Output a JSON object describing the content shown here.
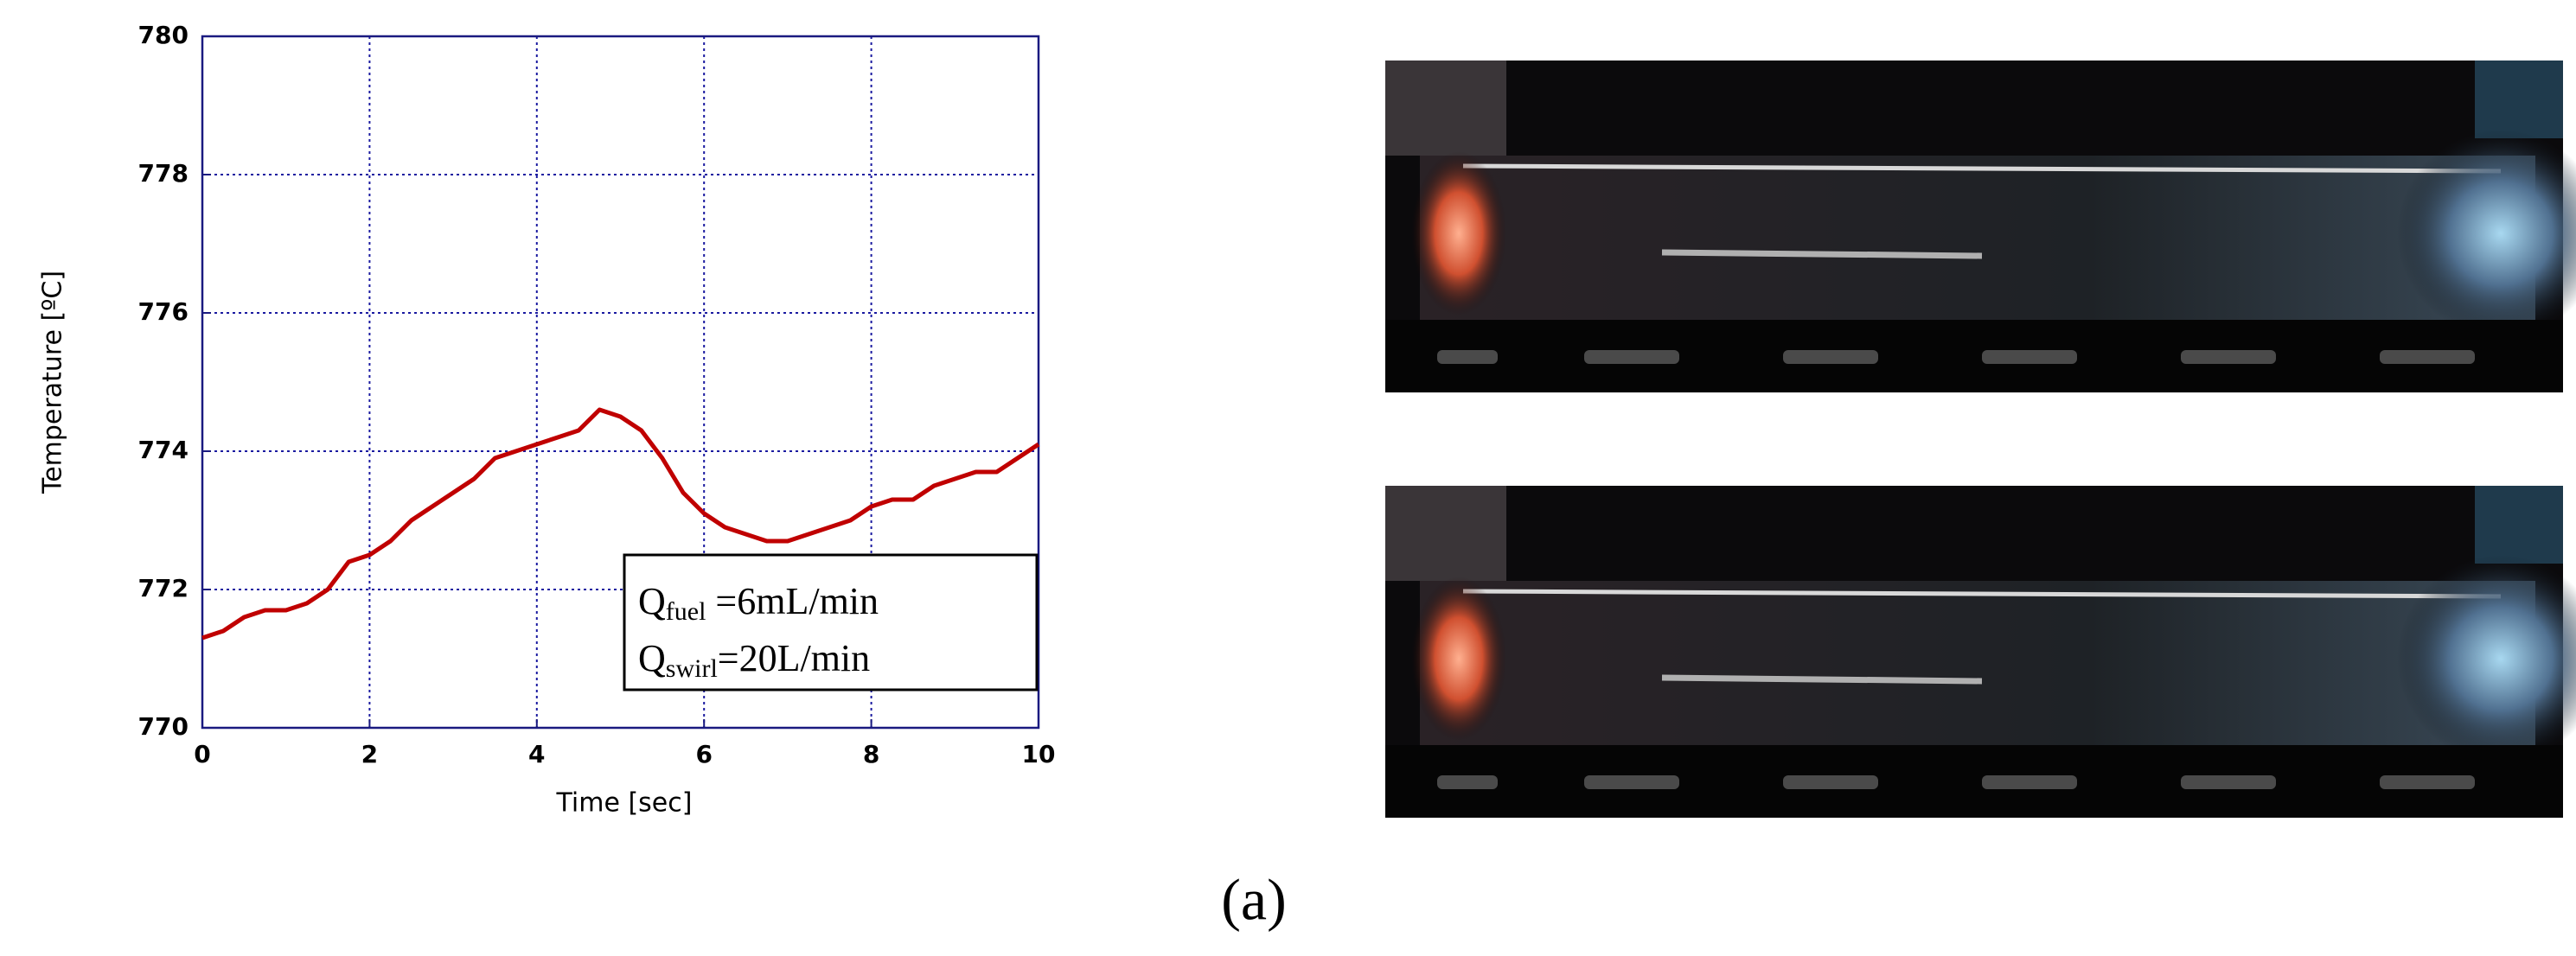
{
  "chart_data": {
    "type": "line",
    "xlabel": "Time  [sec]",
    "ylabel": "Temperature  [ºC]",
    "x": [
      0,
      0.25,
      0.5,
      0.75,
      1.0,
      1.25,
      1.5,
      1.75,
      2.0,
      2.25,
      2.5,
      2.75,
      3.0,
      3.25,
      3.5,
      3.75,
      4.0,
      4.25,
      4.5,
      4.75,
      5.0,
      5.25,
      5.5,
      5.75,
      6.0,
      6.25,
      6.5,
      6.75,
      7.0,
      7.25,
      7.5,
      7.75,
      8.0,
      8.25,
      8.5,
      8.75,
      9.0,
      9.25,
      9.5,
      9.75,
      10
    ],
    "series": [
      {
        "color": "#c00000",
        "values": [
          771.3,
          771.4,
          771.6,
          771.7,
          771.7,
          771.8,
          772.0,
          772.4,
          772.5,
          772.7,
          773.0,
          773.2,
          773.4,
          773.6,
          773.9,
          774.0,
          774.1,
          774.2,
          774.3,
          774.6,
          774.5,
          774.3,
          773.9,
          773.4,
          773.1,
          772.9,
          772.8,
          772.7,
          772.7,
          772.8,
          772.9,
          773.0,
          773.2,
          773.3,
          773.3,
          773.5,
          773.6,
          773.7,
          773.7,
          773.9,
          774.1
        ]
      }
    ],
    "xlim": [
      0,
      10
    ],
    "xticks": [
      0,
      2,
      4,
      6,
      8,
      10
    ],
    "ylim": [
      770,
      780
    ],
    "yticks": [
      770,
      772,
      774,
      776,
      778,
      780
    ],
    "grid": true,
    "annotation": [
      {
        "main": "Q",
        "sub": "fuel",
        "rest": " =6mL/min"
      },
      {
        "main": "Q",
        "sub": "swirl",
        "rest": "=20L/min"
      }
    ]
  },
  "caption": "(a)"
}
